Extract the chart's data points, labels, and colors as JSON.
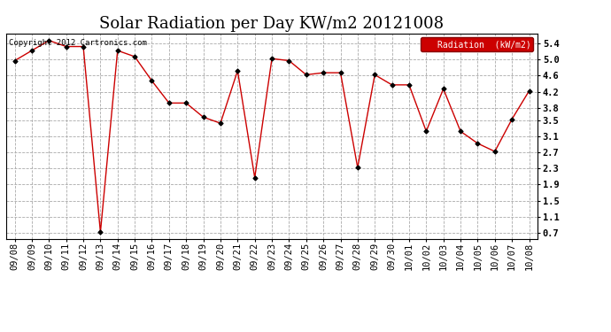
{
  "title": "Solar Radiation per Day KW/m2 20121008",
  "copyright": "Copyright 2012 Cartronics.com",
  "legend_label": "Radiation  (kW/m2)",
  "x_labels": [
    "09/08",
    "09/09",
    "09/10",
    "09/11",
    "09/12",
    "09/13",
    "09/14",
    "09/15",
    "09/16",
    "09/17",
    "09/18",
    "09/19",
    "09/20",
    "09/21",
    "09/22",
    "09/23",
    "09/24",
    "09/25",
    "09/26",
    "09/27",
    "09/28",
    "09/29",
    "09/30",
    "10/01",
    "10/02",
    "10/03",
    "10/04",
    "10/05",
    "10/06",
    "10/07",
    "10/08"
  ],
  "y_values": [
    4.97,
    5.22,
    5.47,
    5.32,
    5.32,
    0.72,
    5.22,
    5.07,
    4.47,
    3.92,
    3.92,
    3.57,
    3.42,
    4.72,
    2.07,
    5.02,
    4.97,
    4.62,
    4.67,
    4.67,
    2.32,
    4.62,
    4.37,
    4.37,
    3.22,
    4.27,
    3.22,
    2.92,
    2.72,
    3.52,
    4.22
  ],
  "y_ticks": [
    0.7,
    1.1,
    1.5,
    1.9,
    2.3,
    2.7,
    3.1,
    3.5,
    3.8,
    4.2,
    4.6,
    5.0,
    5.4
  ],
  "y_tick_labels": [
    "0.7",
    "1.1",
    "1.5",
    "1.9",
    "2.3",
    "2.7",
    "3.1",
    "3.5",
    "3.8",
    "4.2",
    "4.6",
    "5.0",
    "5.4"
  ],
  "ylim": [
    0.55,
    5.65
  ],
  "line_color": "#cc0000",
  "marker_color": "#000000",
  "background_color": "#ffffff",
  "grid_color": "#aaaaaa",
  "title_fontsize": 13,
  "tick_fontsize": 7.5,
  "copyright_fontsize": 6.5,
  "legend_bg": "#cc0000",
  "legend_text_color": "#ffffff"
}
